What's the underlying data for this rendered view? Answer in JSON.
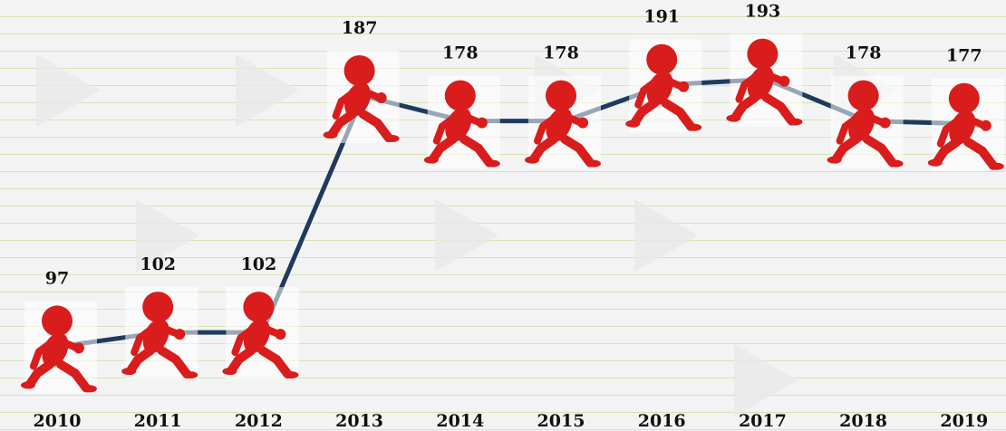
{
  "chart_data": {
    "type": "line",
    "categories": [
      "2010",
      "2011",
      "2012",
      "2013",
      "2014",
      "2015",
      "2016",
      "2017",
      "2018",
      "2019"
    ],
    "values": [
      97,
      102,
      102,
      187,
      178,
      178,
      191,
      193,
      178,
      177
    ],
    "color": "#1f3a5f",
    "marker_color": "#d91c1c",
    "ylim": [
      75,
      215
    ]
  }
}
